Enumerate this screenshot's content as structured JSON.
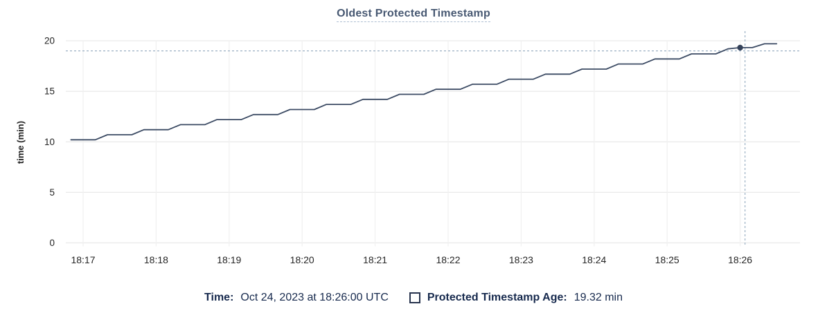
{
  "title": "Oldest Protected Timestamp",
  "chart_data": {
    "type": "line",
    "title": "Oldest Protected Timestamp",
    "xlabel": "",
    "ylabel": "time (min)",
    "ylim": [
      0,
      20
    ],
    "y_ticks": [
      0,
      5,
      10,
      15,
      20
    ],
    "x_ticks": [
      "18:17",
      "18:18",
      "18:19",
      "18:20",
      "18:21",
      "18:22",
      "18:23",
      "18:24",
      "18:25",
      "18:26"
    ],
    "grid": true,
    "legend_position": "bottom",
    "line_style": "step-ramp",
    "series": [
      {
        "name": "Protected Timestamp Age",
        "unit": "min",
        "x_times": [
          "18:16:50",
          "18:17:00",
          "18:17:10",
          "18:17:20",
          "18:17:30",
          "18:17:40",
          "18:17:50",
          "18:18:00",
          "18:18:10",
          "18:18:20",
          "18:18:30",
          "18:18:40",
          "18:18:50",
          "18:19:00",
          "18:19:10",
          "18:19:20",
          "18:19:30",
          "18:19:40",
          "18:19:50",
          "18:20:00",
          "18:20:10",
          "18:20:20",
          "18:20:30",
          "18:20:40",
          "18:20:50",
          "18:21:00",
          "18:21:10",
          "18:21:20",
          "18:21:30",
          "18:21:40",
          "18:21:50",
          "18:22:00",
          "18:22:10",
          "18:22:20",
          "18:22:30",
          "18:22:40",
          "18:22:50",
          "18:23:00",
          "18:23:10",
          "18:23:20",
          "18:23:30",
          "18:23:40",
          "18:23:50",
          "18:24:00",
          "18:24:10",
          "18:24:20",
          "18:24:30",
          "18:24:40",
          "18:24:50",
          "18:25:00",
          "18:25:10",
          "18:25:20",
          "18:25:30",
          "18:25:40",
          "18:25:50",
          "18:26:00",
          "18:26:10",
          "18:26:20",
          "18:26:30"
        ],
        "values": [
          10.2,
          10.2,
          10.2,
          10.7,
          10.7,
          10.7,
          11.2,
          11.2,
          11.2,
          11.7,
          11.7,
          11.7,
          12.2,
          12.2,
          12.2,
          12.7,
          12.7,
          12.7,
          13.2,
          13.2,
          13.2,
          13.7,
          13.7,
          13.7,
          14.2,
          14.2,
          14.2,
          14.7,
          14.7,
          14.7,
          15.2,
          15.2,
          15.2,
          15.7,
          15.7,
          15.7,
          16.2,
          16.2,
          16.2,
          16.7,
          16.7,
          16.7,
          17.2,
          17.2,
          17.2,
          17.7,
          17.7,
          17.7,
          18.2,
          18.2,
          18.2,
          18.7,
          18.7,
          18.7,
          19.2,
          19.32,
          19.32,
          19.7,
          19.7
        ]
      }
    ],
    "hover": {
      "point_time": "18:26:00",
      "point_value": 19.32,
      "crosshair_x_time": "18:26:04",
      "crosshair_y_value": 19.0
    },
    "colors": {
      "line": "#3b4a63",
      "dot": "#35425a",
      "grid_horizontal": "#e9e9e9",
      "grid_vertical": "#f1f1f1",
      "crosshair": "#9bb0c4",
      "axis_text": "#242424",
      "title_text": "#475872",
      "legend_text": "#16294d"
    }
  },
  "tooltip": {
    "time_label": "Time:",
    "time_value": "Oct 24, 2023 at 18:26:00 UTC",
    "series_label": "Protected Timestamp Age:",
    "series_value": "19.32 min"
  }
}
